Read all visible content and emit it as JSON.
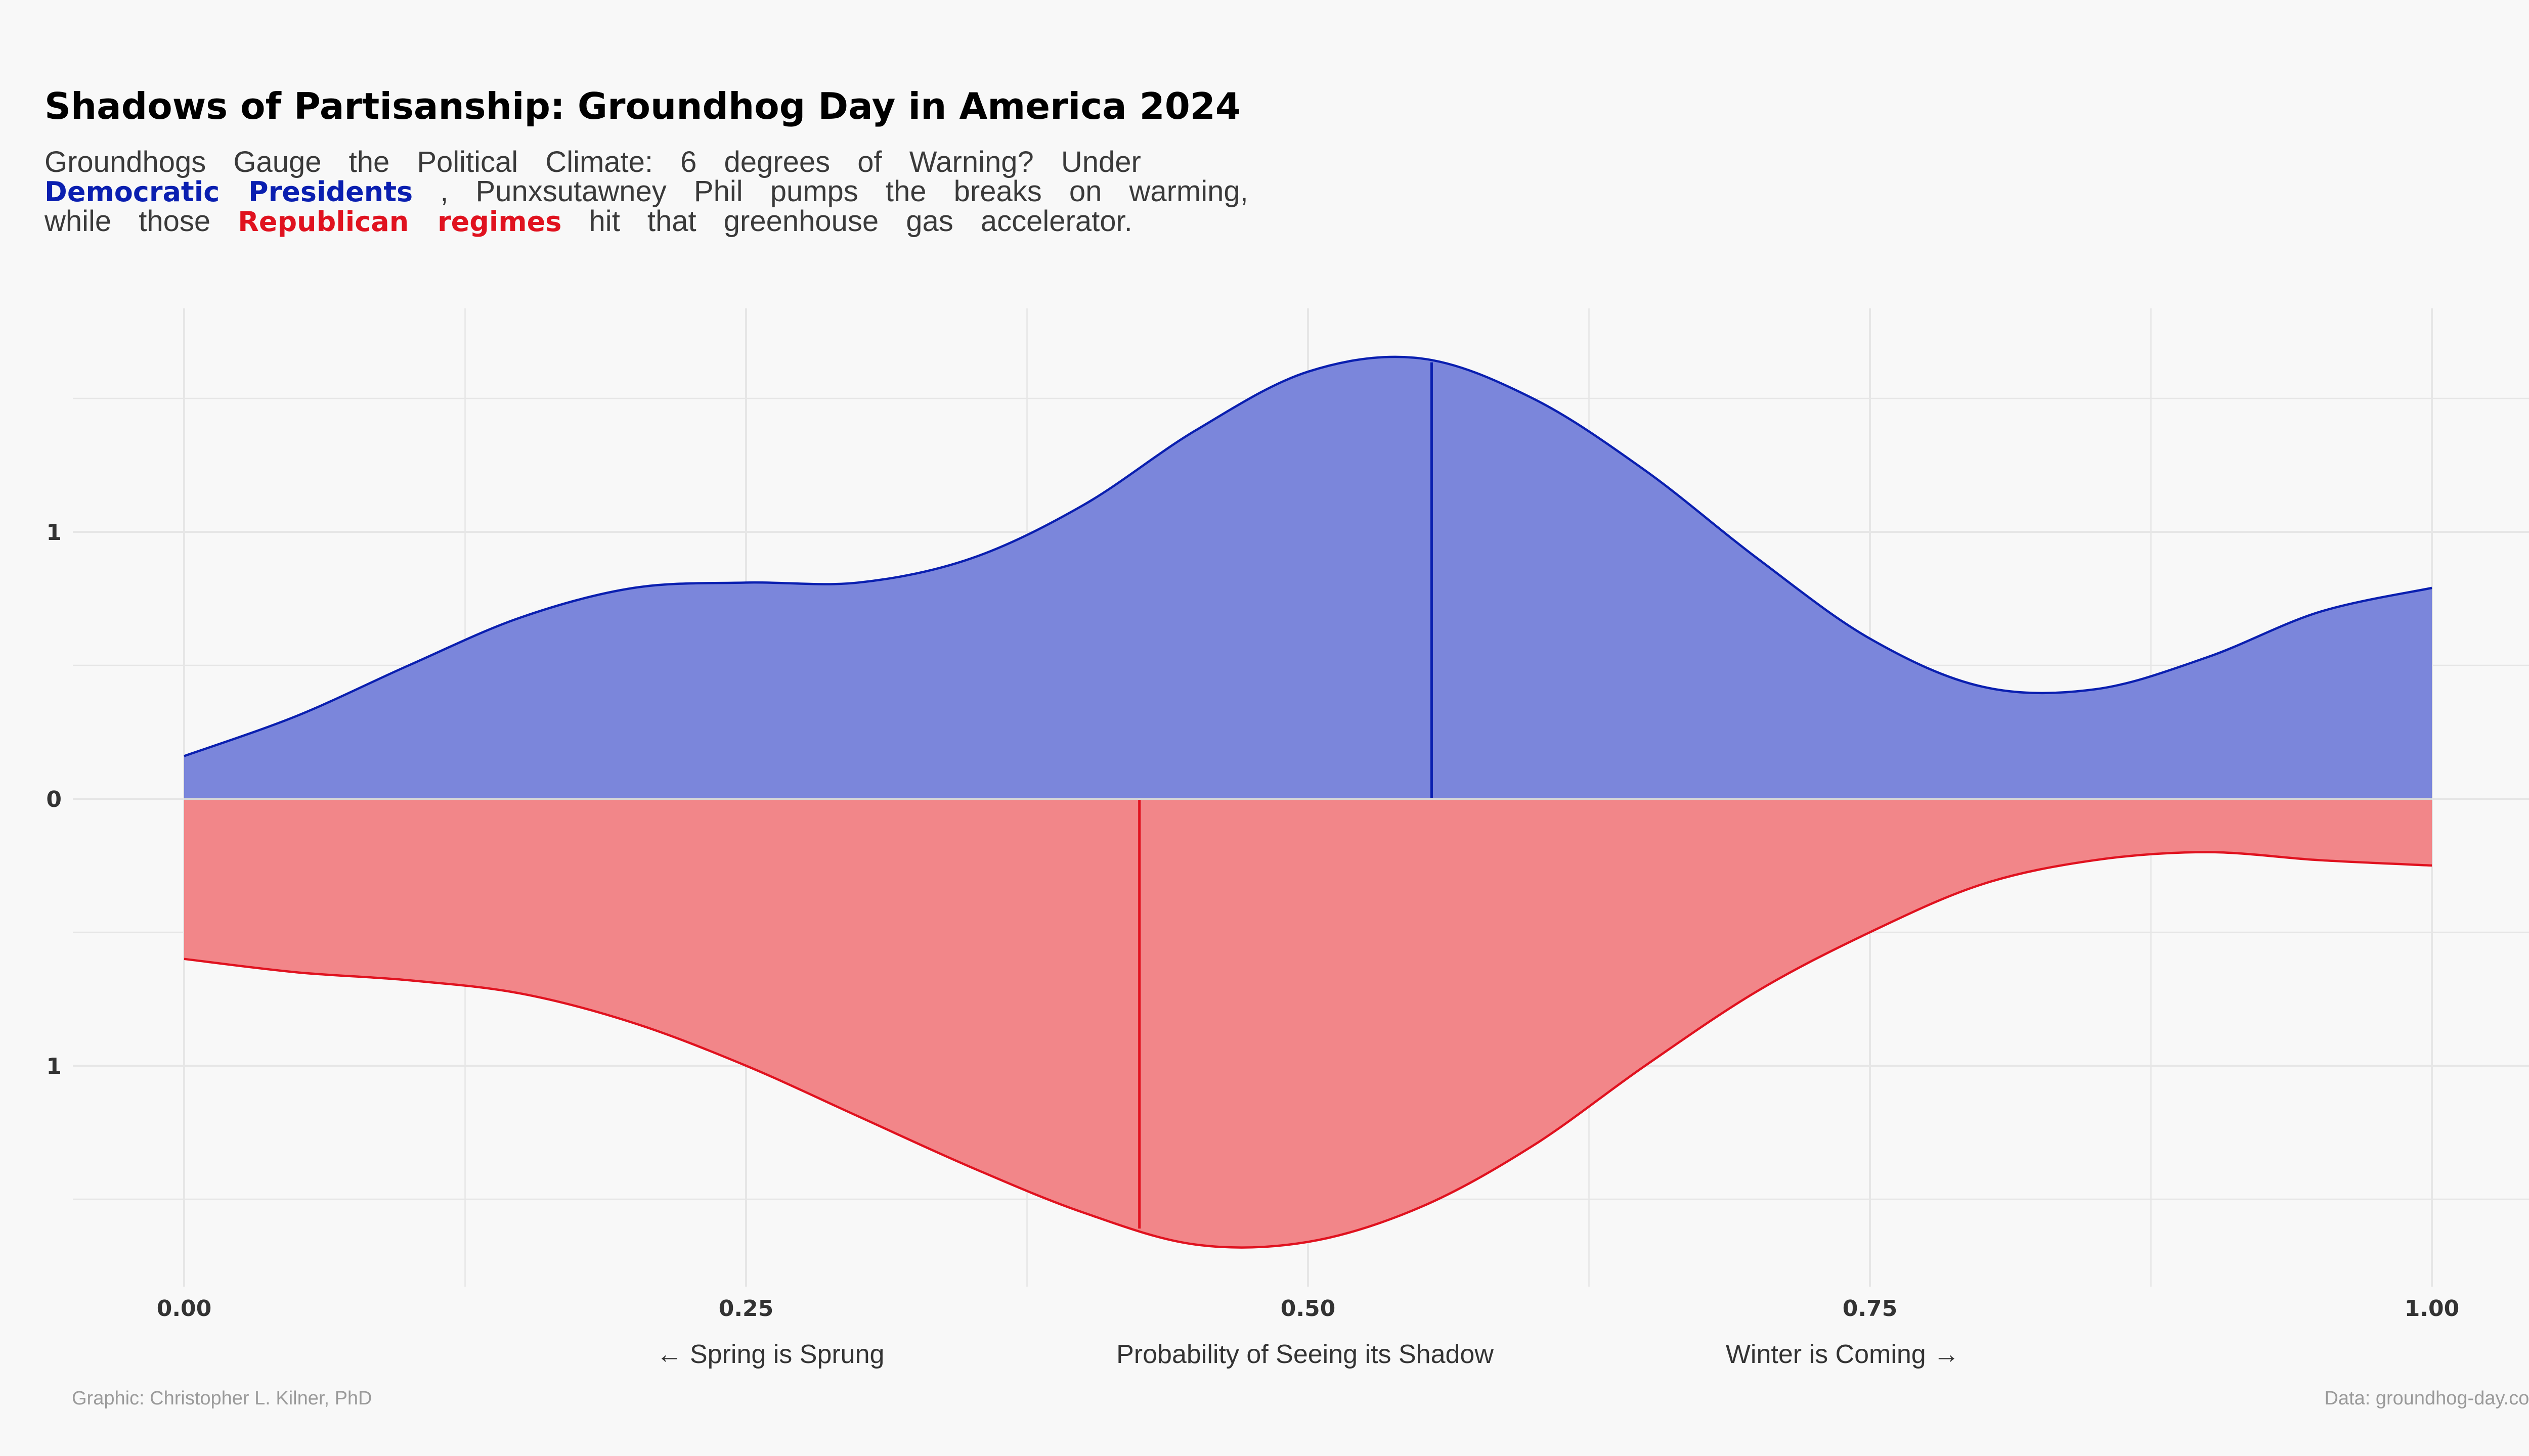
{
  "title": "Shadows of Partisanship: Groundhog Day in America 2024",
  "subtitle": {
    "line1": "Groundhogs Gauge the Political Climate: 6 degrees of Warning? Under",
    "line2_dem": "Democratic Presidents",
    "line2_rest": ", Punxsutawney Phil pumps the breaks on warming,",
    "line3_pre": "while those",
    "line3_rep": "Republican regimes",
    "line3_post": "hit that greenhouse gas accelerator."
  },
  "credits": {
    "graphic": "Graphic: Christopher L. Kilner, PhD",
    "data": "Data: groundhog-day.com"
  },
  "colors": {
    "democratic_fill": "#7b86db",
    "democratic_line": "#0a1fb0",
    "republican_fill": "#f28689",
    "republican_line": "#e0121f",
    "grid": "#e6e6e6",
    "background": "#f8f8f8"
  },
  "chart_data": {
    "type": "area",
    "xlabel": "Probability of Seeing its Shadow",
    "xlabel_left": "← Spring is Sprung",
    "xlabel_right": "Winter is Coming →",
    "xlim": [
      0,
      1
    ],
    "ylim": [
      -1.83,
      1.83
    ],
    "x_ticks": [
      0,
      0.25,
      0.5,
      0.75,
      1.0
    ],
    "x_tick_labels": [
      "0.00",
      "0.25",
      "0.50",
      "0.75",
      "1.00"
    ],
    "y_ticks": [
      -1,
      0,
      1
    ],
    "y_tick_labels": [
      "1",
      "0",
      "1"
    ],
    "grid": true,
    "series": [
      {
        "name": "Democratic",
        "direction": "up",
        "median": 0.555,
        "x": [
          0,
          0.05,
          0.1,
          0.15,
          0.2,
          0.25,
          0.3,
          0.35,
          0.4,
          0.45,
          0.5,
          0.55,
          0.6,
          0.65,
          0.7,
          0.75,
          0.8,
          0.85,
          0.9,
          0.95,
          1.0
        ],
        "y": [
          0.16,
          0.31,
          0.5,
          0.68,
          0.79,
          0.81,
          0.81,
          0.9,
          1.1,
          1.38,
          1.6,
          1.65,
          1.5,
          1.23,
          0.9,
          0.6,
          0.42,
          0.41,
          0.53,
          0.7,
          0.79
        ]
      },
      {
        "name": "Republican",
        "direction": "down",
        "median": 0.425,
        "x": [
          0,
          0.05,
          0.1,
          0.15,
          0.2,
          0.25,
          0.3,
          0.35,
          0.4,
          0.45,
          0.5,
          0.55,
          0.6,
          0.65,
          0.7,
          0.75,
          0.8,
          0.85,
          0.9,
          0.95,
          1.0
        ],
        "y": [
          0.6,
          0.65,
          0.68,
          0.73,
          0.84,
          1.0,
          1.19,
          1.38,
          1.55,
          1.67,
          1.66,
          1.53,
          1.3,
          1.0,
          0.72,
          0.5,
          0.32,
          0.23,
          0.2,
          0.23,
          0.25
        ]
      }
    ]
  }
}
